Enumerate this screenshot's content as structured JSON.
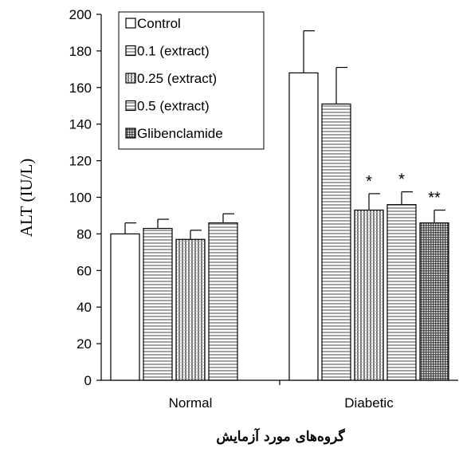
{
  "chart_data": {
    "type": "bar",
    "title": "",
    "xlabel": "گروه‌های مورد آزمایش",
    "ylabel": "ALT (IU/L)",
    "ylim": [
      0,
      200
    ],
    "ytick_step": 20,
    "yticks": [
      "0",
      "20",
      "40",
      "60",
      "80",
      "100",
      "120",
      "140",
      "160",
      "180",
      "200"
    ],
    "categories": [
      "Normal",
      "Diabetic"
    ],
    "legend_position": "top-left",
    "grid": false,
    "series": [
      {
        "name": "Control",
        "pattern": "none",
        "values": [
          80,
          168
        ],
        "errors": [
          6,
          23
        ],
        "significance": [
          "",
          ""
        ]
      },
      {
        "name": "0.1 (extract)",
        "pattern": "hlines",
        "values": [
          83,
          151
        ],
        "errors": [
          5,
          20
        ],
        "significance": [
          "",
          ""
        ]
      },
      {
        "name": "0.25 (extract)",
        "pattern": "vlines",
        "values": [
          77,
          93
        ],
        "errors": [
          5,
          9
        ],
        "significance": [
          "",
          "*"
        ]
      },
      {
        "name": "0.5 (extract)",
        "pattern": "hlines",
        "values": [
          86,
          96
        ],
        "errors": [
          5,
          7
        ],
        "significance": [
          "",
          "*"
        ]
      },
      {
        "name": "Glibenclamide",
        "pattern": "grid",
        "values": [
          null,
          86
        ],
        "errors": [
          null,
          7
        ],
        "significance": [
          "",
          "**"
        ]
      }
    ]
  }
}
